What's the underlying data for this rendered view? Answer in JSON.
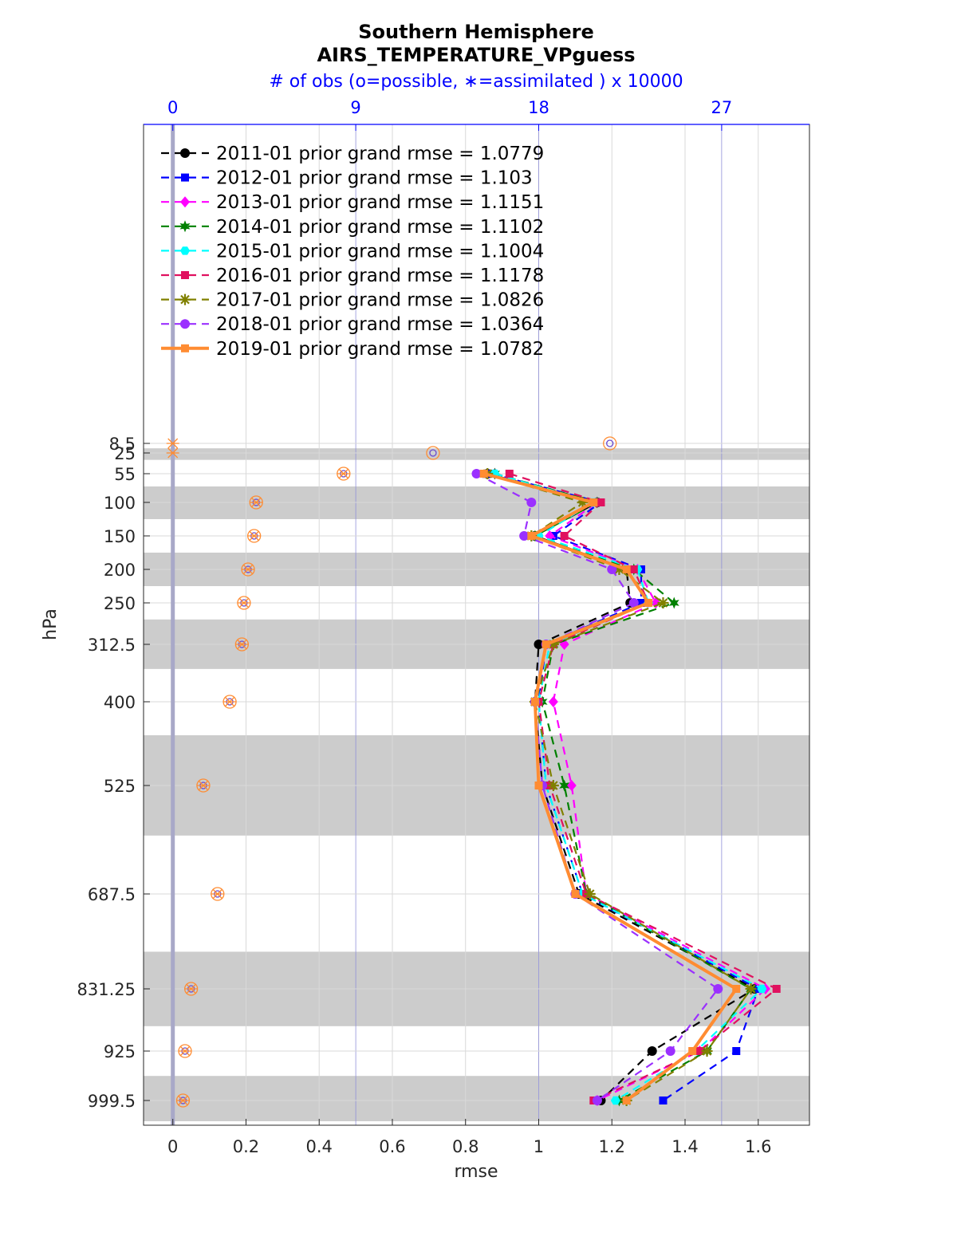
{
  "chart_data": {
    "type": "line",
    "title": "Southern Hemisphere",
    "subtitle": "AIRS_TEMPERATURE_VPguess",
    "top_axis_label": "# of obs (o=possible, ∗=assimilated ) x 10000",
    "xlabel": "rmse",
    "ylabel": "hPa",
    "xlim": [
      -0.08,
      1.74
    ],
    "xticks": [
      0,
      0.2,
      0.4,
      0.6,
      0.8,
      1,
      1.2,
      1.4,
      1.6
    ],
    "xtick_labels": [
      "0",
      "0.2",
      "0.4",
      "0.6",
      "0.8",
      "1",
      "1.2",
      "1.4",
      "1.6"
    ],
    "top_ticks": [
      0,
      9,
      18,
      27
    ],
    "top_tick_labels": [
      "0",
      "9",
      "18",
      "27"
    ],
    "levels": [
      8.5,
      25,
      55,
      100,
      150,
      200,
      250,
      312.5,
      400,
      525,
      687.5,
      831.25,
      925,
      999.5
    ],
    "level_labels": [
      "8.5",
      "25",
      "55",
      "100",
      "150",
      "200",
      "250",
      "312.5",
      "400",
      "525",
      "687.5",
      "831.25",
      "925",
      "999.5"
    ],
    "layer_bands": [
      [
        17,
        35
      ],
      [
        75,
        125
      ],
      [
        175,
        225
      ],
      [
        275,
        350
      ],
      [
        450,
        600
      ],
      [
        775,
        887.5
      ],
      [
        962.5,
        1012.5
      ]
    ],
    "obs_counts_possible": [
      21.5,
      12.8,
      8.4,
      4.1,
      4.0,
      3.7,
      3.5,
      3.4,
      2.8,
      1.5,
      2.2,
      0.9,
      0.6,
      0.5
    ],
    "obs_counts_assimilated": [
      0,
      0,
      8.4,
      4.1,
      4.0,
      3.7,
      3.5,
      3.4,
      2.8,
      1.5,
      2.2,
      0.9,
      0.6,
      0.5
    ],
    "legend_placement": "top-left",
    "grid": true,
    "series": [
      {
        "name": "2011-01 prior grand rmse = 1.0779",
        "color": "#000000",
        "marker": "circle",
        "dash": true,
        "values": [
          null,
          null,
          0.86,
          1.16,
          0.99,
          1.24,
          1.25,
          1.0,
          0.99,
          1.01,
          1.11,
          1.59,
          1.31,
          1.17
        ]
      },
      {
        "name": "2012-01 prior grand rmse = 1.103",
        "color": "#0000ff",
        "marker": "square",
        "dash": true,
        "values": [
          null,
          null,
          0.87,
          1.17,
          1.04,
          1.28,
          1.28,
          1.02,
          1.0,
          1.02,
          1.12,
          1.6,
          1.54,
          1.34
        ]
      },
      {
        "name": "2013-01 prior grand rmse = 1.1151",
        "color": "#ff00ff",
        "marker": "diamond",
        "dash": true,
        "values": [
          null,
          null,
          0.88,
          1.16,
          1.03,
          1.27,
          1.32,
          1.07,
          1.04,
          1.09,
          1.13,
          1.62,
          1.44,
          1.16
        ]
      },
      {
        "name": "2014-01 prior grand rmse = 1.1102",
        "color": "#008000",
        "marker": "hexagram",
        "dash": true,
        "values": [
          null,
          null,
          0.88,
          1.16,
          0.99,
          1.26,
          1.37,
          1.04,
          1.01,
          1.07,
          1.13,
          1.58,
          1.46,
          1.22
        ]
      },
      {
        "name": "2015-01 prior grand rmse = 1.1004",
        "color": "#00ffff",
        "marker": "hexagon",
        "dash": true,
        "values": [
          null,
          null,
          0.88,
          1.15,
          1.0,
          1.27,
          1.3,
          1.03,
          1.0,
          1.02,
          1.12,
          1.61,
          1.43,
          1.21
        ]
      },
      {
        "name": "2016-01 prior grand rmse = 1.1178",
        "color": "#e0115f",
        "marker": "square",
        "dash": true,
        "values": [
          null,
          null,
          0.92,
          1.17,
          1.07,
          1.26,
          1.3,
          1.04,
          1.0,
          1.03,
          1.13,
          1.65,
          1.44,
          1.15
        ]
      },
      {
        "name": "2017-01 prior grand rmse = 1.0826",
        "color": "#808000",
        "marker": "asterisk",
        "dash": true,
        "values": [
          null,
          null,
          0.86,
          1.12,
          0.98,
          1.22,
          1.34,
          1.04,
          0.99,
          1.04,
          1.14,
          1.58,
          1.46,
          1.24
        ]
      },
      {
        "name": "2018-01 prior grand rmse = 1.0364",
        "color": "#9b30ff",
        "marker": "circle",
        "dash": true,
        "values": [
          null,
          null,
          0.83,
          0.98,
          0.96,
          1.2,
          1.26,
          1.02,
          0.99,
          1.01,
          1.1,
          1.49,
          1.36,
          1.16
        ]
      },
      {
        "name": "2019-01 prior grand rmse = 1.0782",
        "color": "#ff8c32",
        "marker": "square",
        "dash": false,
        "values": [
          null,
          null,
          0.85,
          1.15,
          0.98,
          1.24,
          1.3,
          1.02,
          0.99,
          1.0,
          1.1,
          1.54,
          1.42,
          1.24
        ]
      }
    ]
  }
}
